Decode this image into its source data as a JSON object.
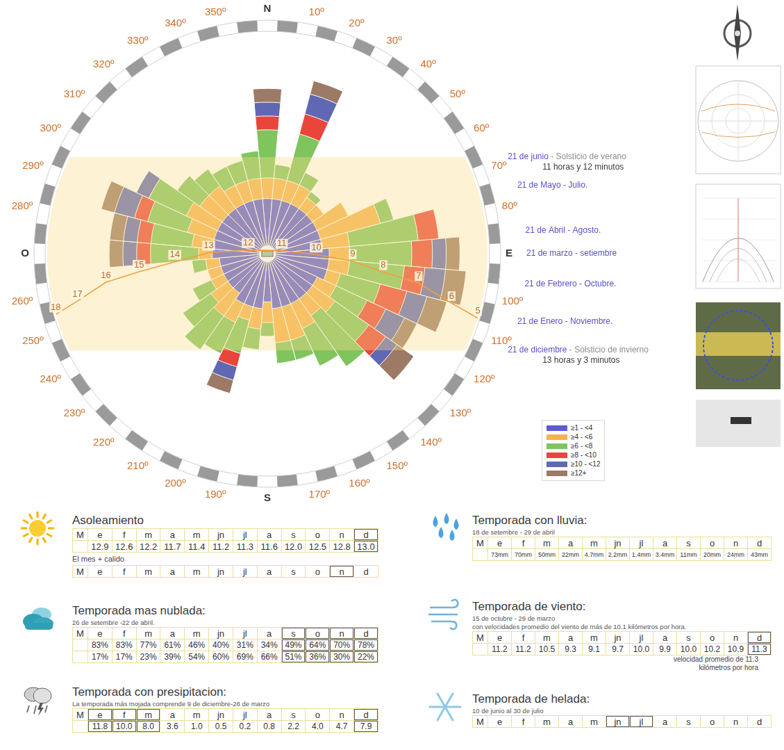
{
  "chart_data": {
    "type": "polarArea",
    "categories": [
      "N",
      "10º",
      "20º",
      "30º",
      "40º",
      "50º",
      "60º",
      "70º",
      "80º",
      "E",
      "100º",
      "110º",
      "120º",
      "130º",
      "140º",
      "150º",
      "160º",
      "170º",
      "S",
      "190º",
      "200º",
      "210º",
      "220º",
      "230º",
      "240º",
      "250º",
      "260º",
      "O",
      "280º",
      "290º",
      "300º",
      "310º",
      "320º",
      "330º",
      "340º",
      "350º"
    ],
    "series": [
      {
        "name": "≥1 - <4",
        "color": "#5b5bd6",
        "values": [
          8,
          8,
          8,
          8,
          8,
          8,
          8,
          8,
          8,
          9,
          9,
          9,
          8,
          8,
          8,
          8,
          8,
          8,
          7,
          8,
          8,
          8,
          7,
          7,
          7,
          7,
          7,
          8,
          8,
          8,
          8,
          8,
          8,
          8,
          8,
          8
        ]
      },
      {
        "name": "≥4 - <6",
        "color": "#f6b24e",
        "values": [
          3,
          3,
          3,
          3,
          2,
          2,
          5,
          9,
          4,
          3,
          3,
          2,
          3,
          4,
          3,
          4,
          5,
          5,
          3,
          3,
          2,
          3,
          4,
          3,
          2,
          2,
          2,
          2,
          3,
          4,
          5,
          4,
          4,
          3,
          3,
          3
        ]
      },
      {
        "name": "≥6 - <8",
        "color": "#80c45e",
        "values": [
          7,
          2,
          7,
          2,
          1,
          0,
          0,
          2,
          10,
          9,
          8,
          6,
          5,
          6,
          9,
          6,
          3,
          3,
          2,
          3,
          5,
          5,
          6,
          5,
          3,
          0,
          2,
          7,
          6,
          6,
          6,
          4,
          3,
          3,
          3,
          4
        ]
      },
      {
        "name": "≥8 - <10",
        "color": "#e9453a",
        "values": [
          2,
          0,
          3,
          0,
          0,
          0,
          0,
          0,
          3,
          3,
          3,
          4,
          3,
          3,
          0,
          0,
          0,
          0,
          0,
          0,
          2,
          0,
          0,
          0,
          0,
          0,
          0,
          2,
          2,
          2,
          0,
          0,
          0,
          0,
          0,
          0
        ]
      },
      {
        "name": "≥10 - <12",
        "color": "#6068b4",
        "values": [
          2,
          0,
          3,
          0,
          0,
          0,
          0,
          0,
          0,
          2,
          3,
          3,
          3,
          2,
          0,
          0,
          0,
          0,
          0,
          0,
          2,
          0,
          0,
          0,
          0,
          0,
          0,
          2,
          2,
          3,
          2,
          0,
          0,
          0,
          0,
          0
        ]
      },
      {
        "name": "≥12+",
        "color": "#9c7a66",
        "values": [
          2,
          0,
          2,
          0,
          0,
          0,
          0,
          0,
          0,
          2,
          3,
          3,
          2,
          3,
          0,
          0,
          0,
          0,
          0,
          0,
          2,
          0,
          0,
          0,
          0,
          0,
          0,
          2,
          2,
          2,
          0,
          0,
          0,
          0,
          0,
          0
        ]
      }
    ],
    "ylim": [
      0,
      32
    ],
    "stacked": true,
    "grid": false,
    "tick_labels": "x",
    "legend": "right",
    "sun_path": {
      "hours": [
        5,
        6,
        7,
        8,
        9,
        10,
        11,
        12,
        13,
        14,
        15,
        16,
        17,
        18
      ],
      "azimuth": [
        107,
        105,
        101,
        99,
        95,
        91,
        78,
        281,
        271,
        265,
        262,
        260,
        256,
        254
      ],
      "altitude": [
        0,
        12,
        27,
        42,
        55,
        70,
        84,
        82,
        66,
        52,
        37,
        23,
        10,
        0
      ],
      "altitude_lim": [
        0,
        90
      ],
      "color": "#f0a040"
    },
    "sun_dates": [
      {
        "date": "21 de junio",
        "note": "- Solsticio de verano",
        "duration": "11 horas y 12 minutos",
        "azimuth": 64
      },
      {
        "date": "21 de Mayo - Julio.",
        "azimuth": 72
      },
      {
        "date": "21 de Abril - Agosto.",
        "azimuth": 84
      },
      {
        "date": "21 de marzo - setiembre",
        "azimuth": 90
      },
      {
        "date": "21 de Febrero - Octubre.",
        "azimuth": 98
      },
      {
        "date": "21 de Enero - Noviembre.",
        "azimuth": 108
      },
      {
        "date": "21 de diciembre",
        "note": "- Solsticio de invierno",
        "duration": "13 horas y 3 minutos",
        "azimuth": 116
      }
    ]
  },
  "sections": [
    {
      "title": "Asoleamiento",
      "tables": [
        {
          "header": [
            "M",
            "e",
            "f",
            "m",
            "a",
            "m",
            "jn",
            "jl",
            "a",
            "s",
            "o",
            "n",
            "d"
          ],
          "rows": [
            [
              "12.9",
              "12.6",
              "12.2",
              "11.7",
              "11.4",
              "11.2",
              "11.3",
              "11.6",
              "12.0",
              "12.5",
              "12.8",
              "13.0"
            ]
          ],
          "highlight": [
            11
          ]
        },
        {
          "caption": "El mes + calido",
          "header": [
            "M",
            "e",
            "f",
            "m",
            "a",
            "m",
            "jn",
            "jl",
            "a",
            "s",
            "o",
            "n",
            "d"
          ],
          "rows": [],
          "highlight": [
            10
          ]
        }
      ]
    },
    {
      "title": "Temporada mas nublada:",
      "subtitle": [
        "26 de setembre -22 de abril."
      ],
      "tables": [
        {
          "header": [
            "M",
            "e",
            "f",
            "m",
            "a",
            "m",
            "jn",
            "jl",
            "a",
            "s",
            "o",
            "n",
            "d"
          ],
          "rows": [
            [
              "83%",
              "83%",
              "77%",
              "61%",
              "46%",
              "40%",
              "31%",
              "34%",
              "49%",
              "64%",
              "70%",
              "78%"
            ],
            [
              "17%",
              "17%",
              "23%",
              "39%",
              "54%",
              "60%",
              "69%",
              "66%",
              "51%",
              "36%",
              "30%",
              "22%"
            ]
          ],
          "highlight": [
            8,
            9,
            10,
            11
          ]
        }
      ]
    },
    {
      "title": "Temporada con presipitacion:",
      "subtitle": [
        "La temporada más mojada comprende 9 de diciembre-28 de marzo"
      ],
      "tables": [
        {
          "header": [
            "M",
            "e",
            "f",
            "m",
            "a",
            "m",
            "jn",
            "jl",
            "a",
            "s",
            "o",
            "n",
            "d"
          ],
          "rows": [
            [
              "11.8",
              "10.0",
              "8.0",
              "3.6",
              "1.0",
              "0.5",
              "0.2",
              "0.8",
              "2.2",
              "4.0",
              "4.7",
              "7.9"
            ]
          ],
          "highlight": [
            0,
            1,
            2,
            11
          ]
        }
      ]
    },
    {
      "title": "Temporada con lluvia:",
      "subtitle": [
        "18 de setembre - 29 de abril"
      ],
      "tables": [
        {
          "header": [
            "M",
            "e",
            "f",
            "m",
            "a",
            "m",
            "jn",
            "jl",
            "a",
            "s",
            "o",
            "n",
            "d"
          ],
          "rows": [
            [
              "73mm",
              "70mm",
              "50mm",
              "22mm",
              "4.7mm",
              "2.2mm",
              "1.4mm",
              "3.4mm",
              "11mm",
              "20mm",
              "24mm",
              "43mm"
            ]
          ],
          "highlight": []
        }
      ]
    },
    {
      "title": "Temporada de viento:",
      "subtitle": [
        "15 de octubre - 29 de marzo",
        "con velocidades promedio del viento de más de 10.1 kilómetros por hora."
      ],
      "tables": [
        {
          "header": [
            "M",
            "e",
            "f",
            "m",
            "a",
            "m",
            "jn",
            "jl",
            "a",
            "s",
            "o",
            "n",
            "d"
          ],
          "rows": [
            [
              "11.2",
              "11.2",
              "10.5",
              "9.3",
              "9.1",
              "9.7",
              "10.0",
              "9.9",
              "10.0",
              "10.2",
              "10.9",
              "11.3"
            ]
          ],
          "highlight": [
            11
          ]
        }
      ],
      "footnote": [
        "velocidad promedio de 11.3",
        "kilómetros por hora"
      ]
    },
    {
      "title": "Temporada de helada:",
      "subtitle": [
        "10 de junio al 30 de julio"
      ],
      "tables": [
        {
          "header": [
            "M",
            "e",
            "f",
            "m",
            "a",
            "m",
            "jn",
            "jl",
            "a",
            "s",
            "o",
            "n",
            "d"
          ],
          "rows": [],
          "highlight": [
            5,
            6
          ]
        }
      ]
    }
  ]
}
